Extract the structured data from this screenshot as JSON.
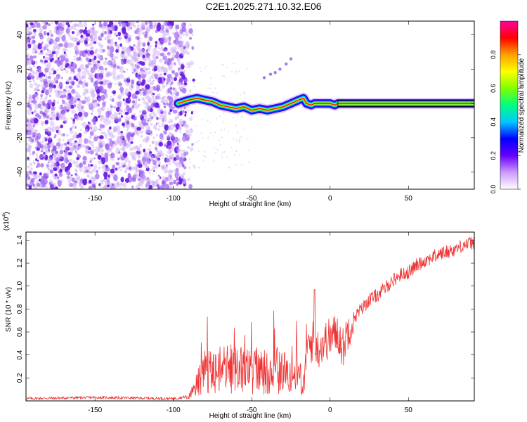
{
  "title": "C2E1.2025.271.10.32.E06",
  "chart_data": [
    {
      "type": "heatmap",
      "title": "C2E1.2025.271.10.32.E06",
      "xlabel": "Height of straight line (km)",
      "ylabel": "Frequency (Hz)",
      "xlim": [
        -194,
        92
      ],
      "ylim": [
        -50,
        48
      ],
      "x_ticks": [
        -150,
        -100,
        -50,
        0,
        50
      ],
      "y_ticks": [
        -40,
        -20,
        0,
        20,
        40
      ],
      "x_tick_labels": [
        "-150",
        "-100",
        "-50",
        "0",
        "50"
      ],
      "y_tick_labels": [
        "-40",
        "-20",
        "0",
        "20",
        "40"
      ],
      "noise_region_x": [
        -194,
        -92
      ],
      "ridge": {
        "x": [
          -97,
          -90,
          -85,
          -80,
          -75,
          -70,
          -65,
          -60,
          -55,
          -50,
          -45,
          -40,
          -35,
          -30,
          -25,
          -20,
          -17,
          -15,
          -12,
          -10,
          -5,
          0,
          3,
          5,
          10,
          20,
          40,
          60,
          92
        ],
        "y": [
          0,
          2,
          3,
          2,
          1,
          -1,
          -2,
          -3,
          -2,
          -4,
          -3,
          -4,
          -3,
          -2,
          0,
          2,
          3,
          0,
          -1,
          0,
          0,
          0,
          -1,
          0,
          0,
          0,
          0,
          0,
          0
        ]
      },
      "side_streak": {
        "x": [
          -42,
          -38,
          -35,
          -32,
          -28,
          -25
        ],
        "y": [
          15,
          17,
          18,
          20,
          23,
          26
        ]
      },
      "colorbar": {
        "label": "Normalized spectral amplitude",
        "ticks": [
          0.0,
          0.2,
          0.4,
          0.6,
          0.8
        ],
        "tick_labels": [
          "0.0",
          "0.2",
          "0.4",
          "0.6",
          "0.8"
        ],
        "range": [
          0,
          1
        ],
        "colors": [
          "#ffffff",
          "#cc99ff",
          "#6600ff",
          "#0000ff",
          "#00c8ff",
          "#00ff80",
          "#80ff00",
          "#ffff00",
          "#ffa000",
          "#ff0000",
          "#ff00a0"
        ]
      }
    },
    {
      "type": "line",
      "xlabel": "Height of straight line (km)",
      "ylabel": "SNR (10 * v/v)",
      "exponent_label": "(x10",
      "exponent_power": "4",
      "exponent_close": ")",
      "xlim": [
        -194,
        92
      ],
      "ylim": [
        0,
        1.47
      ],
      "x_ticks": [
        -150,
        -100,
        -50,
        0,
        50
      ],
      "x_tick_labels": [
        "-150",
        "-100",
        "-50",
        "0",
        "50"
      ],
      "y_ticks": [
        0.2,
        0.4,
        0.6,
        0.8,
        1.0,
        1.2,
        1.4
      ],
      "y_tick_labels": [
        "0.2",
        "0.4",
        "0.6",
        "0.8",
        "1.0",
        "1.2",
        "1.4"
      ],
      "series": [
        {
          "name": "SNR",
          "color": "#ee3333",
          "x": [
            -194,
            -150,
            -100,
            -90,
            -85,
            -82,
            -80,
            -75,
            -70,
            -65,
            -60,
            -55,
            -50,
            -45,
            -40,
            -35,
            -30,
            -25,
            -20,
            -17,
            -15,
            -12,
            -10,
            -8,
            -5,
            0,
            5,
            8,
            10,
            12,
            15,
            20,
            25,
            30,
            35,
            40,
            45,
            50,
            55,
            60,
            65,
            70,
            75,
            80,
            85,
            92
          ],
          "y": [
            0.02,
            0.03,
            0.02,
            0.04,
            0.15,
            0.25,
            0.3,
            0.28,
            0.3,
            0.32,
            0.3,
            0.3,
            0.28,
            0.3,
            0.3,
            0.3,
            0.28,
            0.3,
            0.3,
            0.2,
            0.45,
            0.5,
            0.55,
            0.45,
            0.5,
            0.55,
            0.6,
            0.45,
            0.55,
            0.65,
            0.72,
            0.8,
            0.88,
            0.92,
            0.98,
            1.05,
            1.1,
            1.12,
            1.18,
            1.22,
            1.25,
            1.28,
            1.3,
            1.32,
            1.36,
            1.38
          ]
        }
      ]
    }
  ]
}
